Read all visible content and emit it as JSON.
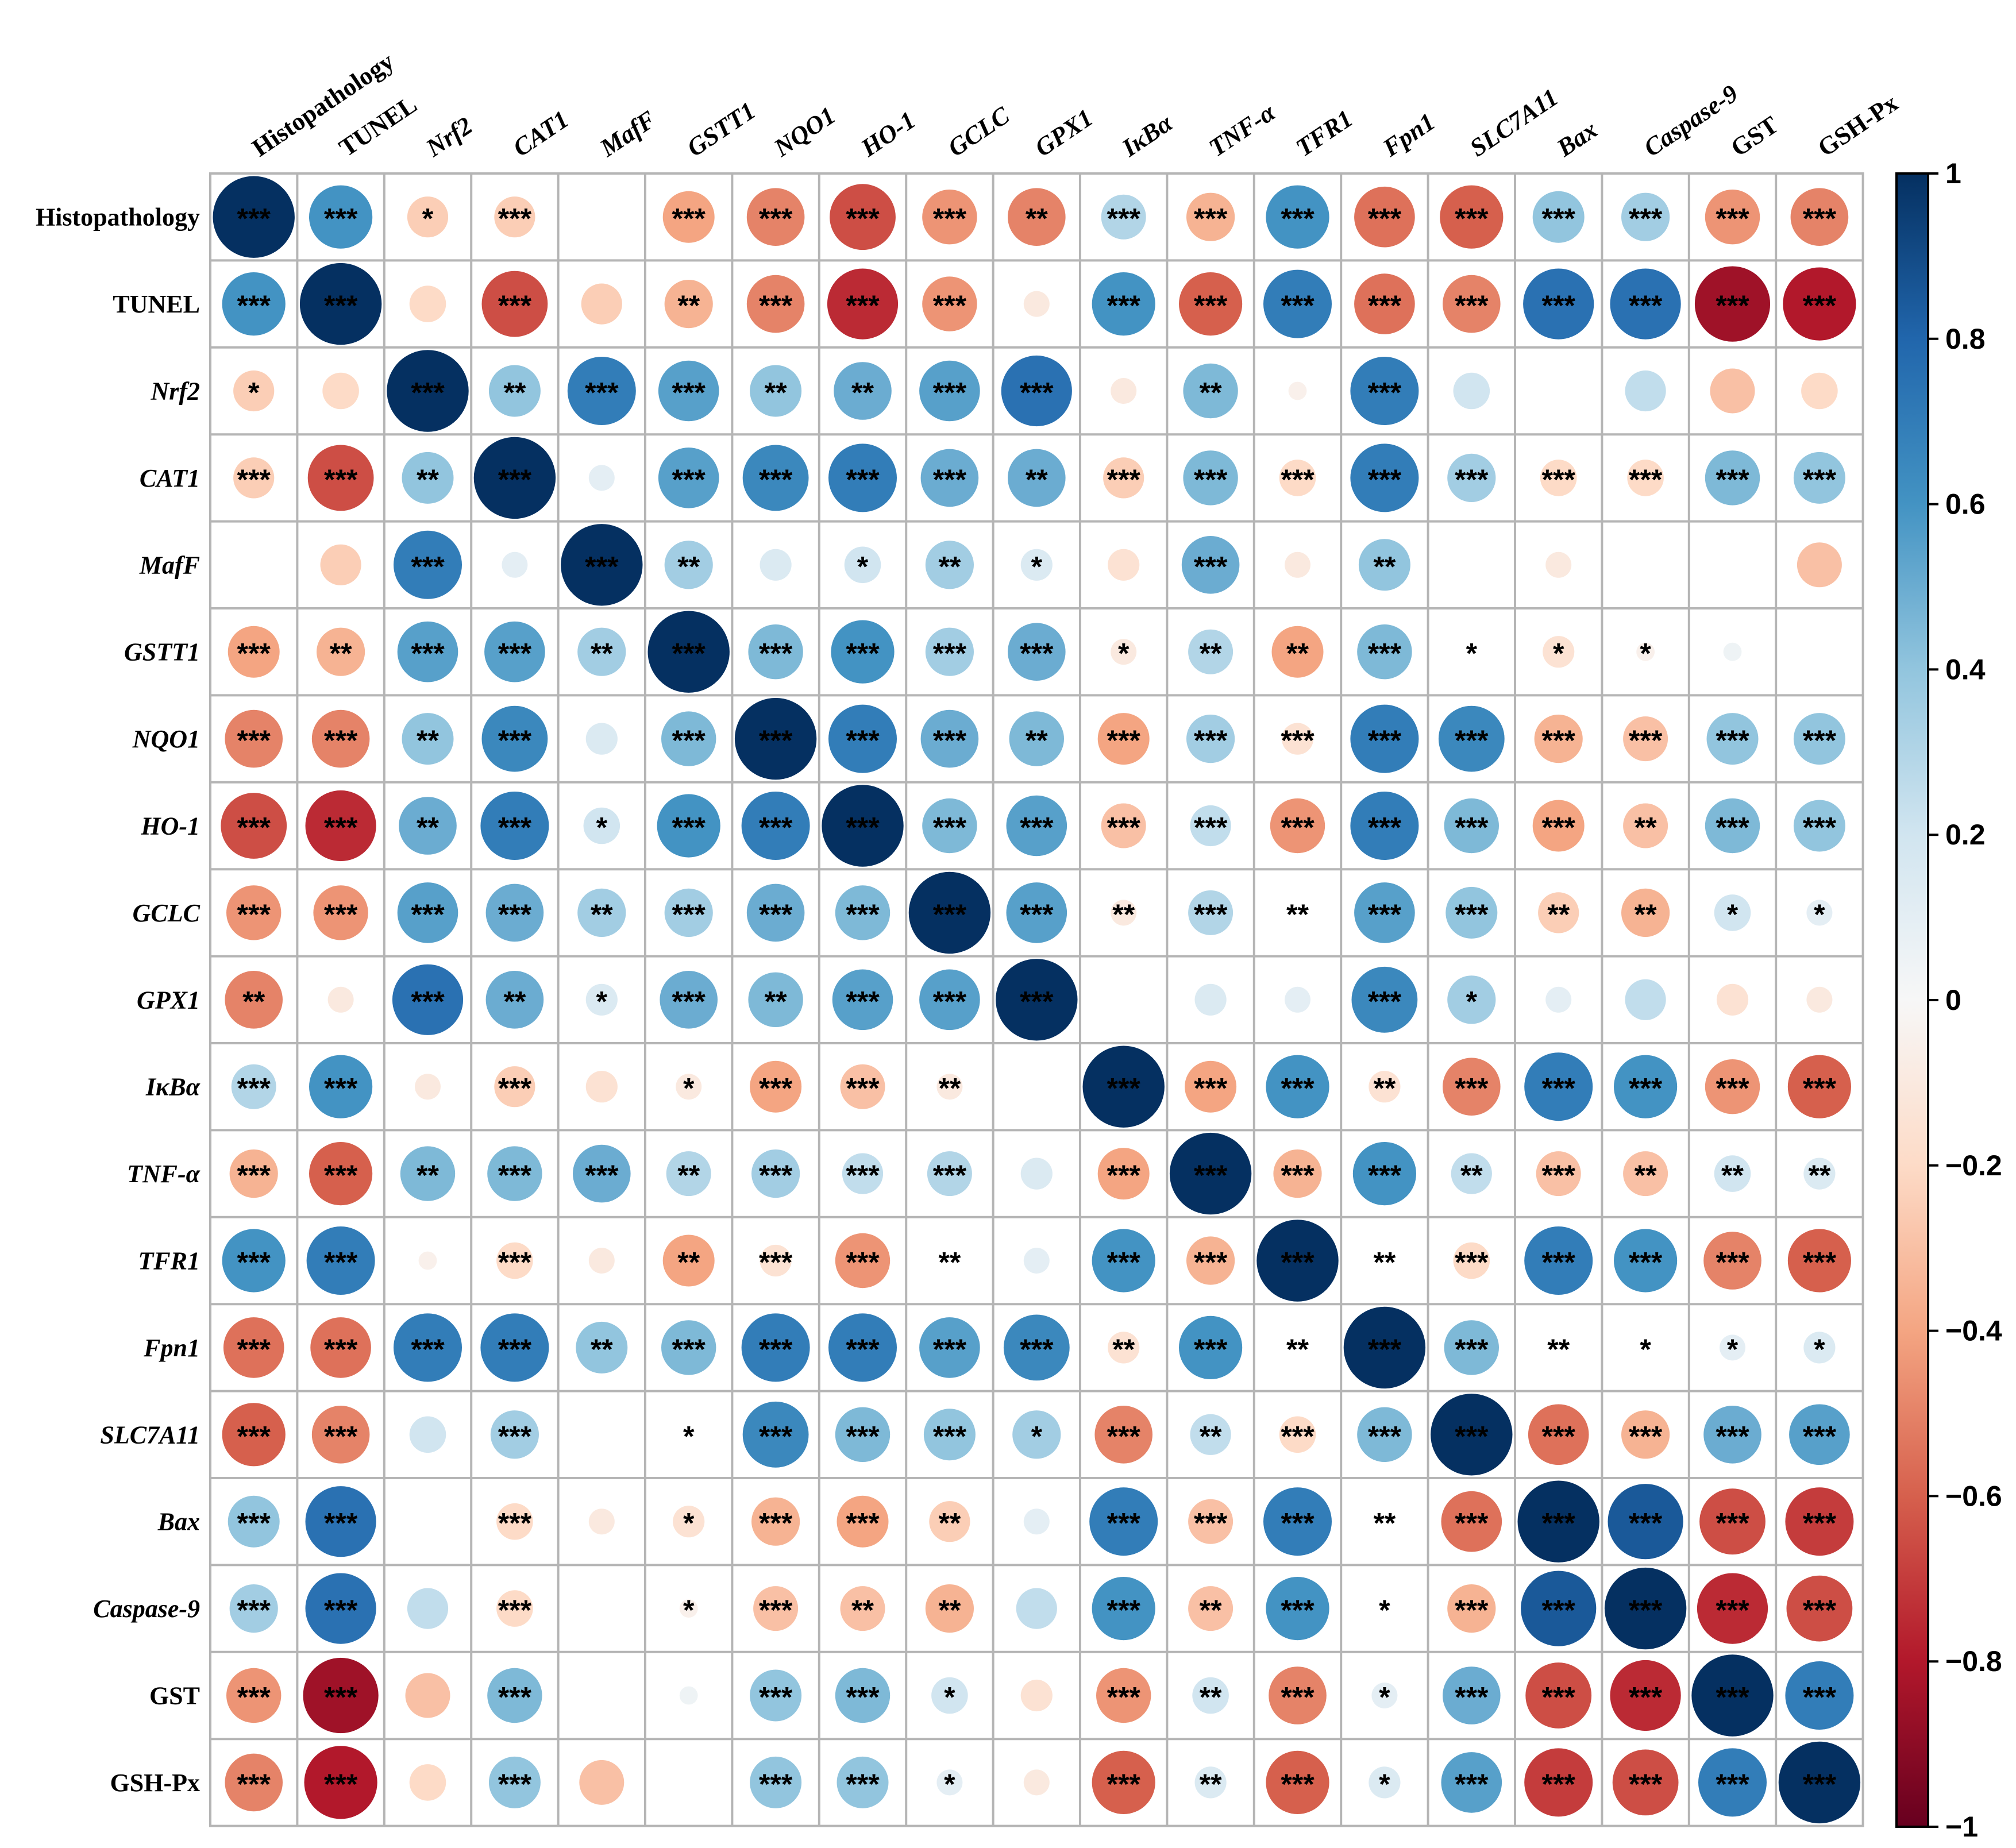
{
  "chart_data": {
    "type": "heatmap",
    "style": "circle-correlation-matrix",
    "title": "",
    "variables": [
      {
        "label": "Histopathology",
        "italic": false
      },
      {
        "label": "TUNEL",
        "italic": false
      },
      {
        "label": "Nrf2",
        "italic": true
      },
      {
        "label": "CAT1",
        "italic": true
      },
      {
        "label": "MafF",
        "italic": true
      },
      {
        "label": "GSTT1",
        "italic": true
      },
      {
        "label": "NQO1",
        "italic": true
      },
      {
        "label": "HO-1",
        "italic": true
      },
      {
        "label": "GCLC",
        "italic": true
      },
      {
        "label": "GPX1",
        "italic": true
      },
      {
        "label": "IκBα",
        "italic": true
      },
      {
        "label": "TNF-α",
        "italic": true
      },
      {
        "label": "TFR1",
        "italic": true
      },
      {
        "label": "Fpn1",
        "italic": true
      },
      {
        "label": "SLC7A11",
        "italic": true
      },
      {
        "label": "Bax",
        "italic": true
      },
      {
        "label": "Caspase-9",
        "italic": true
      },
      {
        "label": "GST",
        "italic": false
      },
      {
        "label": "GSH-Px",
        "italic": false
      }
    ],
    "correlations": [
      [
        1.0,
        0.6,
        -0.25,
        -0.25,
        0.0,
        -0.4,
        -0.5,
        -0.65,
        -0.45,
        -0.5,
        0.3,
        -0.35,
        0.6,
        -0.55,
        -0.6,
        0.4,
        0.35,
        -0.45,
        -0.5
      ],
      [
        0.6,
        1.0,
        -0.2,
        -0.65,
        -0.25,
        -0.35,
        -0.5,
        -0.75,
        -0.45,
        -0.1,
        0.6,
        -0.6,
        0.7,
        -0.55,
        -0.5,
        0.75,
        0.75,
        -0.85,
        -0.8
      ],
      [
        -0.25,
        -0.2,
        1.0,
        0.4,
        0.7,
        0.55,
        0.4,
        0.5,
        0.55,
        0.75,
        -0.1,
        0.45,
        -0.05,
        0.7,
        0.2,
        0.0,
        0.25,
        -0.3,
        -0.2
      ],
      [
        -0.25,
        -0.65,
        0.4,
        1.0,
        0.1,
        0.55,
        0.65,
        0.7,
        0.5,
        0.5,
        -0.25,
        0.45,
        -0.2,
        0.7,
        0.35,
        -0.2,
        -0.2,
        0.45,
        0.4
      ],
      [
        0.0,
        -0.25,
        0.7,
        0.1,
        1.0,
        0.35,
        0.15,
        0.2,
        0.35,
        0.15,
        -0.15,
        0.5,
        -0.1,
        0.4,
        0.0,
        -0.1,
        0.0,
        0.0,
        -0.3
      ],
      [
        -0.4,
        -0.35,
        0.55,
        0.55,
        0.35,
        1.0,
        0.45,
        0.6,
        0.35,
        0.5,
        -0.1,
        0.3,
        -0.4,
        0.45,
        0.0,
        -0.15,
        -0.05,
        0.05,
        0.0
      ],
      [
        -0.5,
        -0.5,
        0.4,
        0.65,
        0.15,
        0.45,
        1.0,
        0.7,
        0.5,
        0.45,
        -0.4,
        0.35,
        -0.15,
        0.7,
        0.65,
        -0.35,
        -0.3,
        0.4,
        0.4
      ],
      [
        -0.65,
        -0.75,
        0.5,
        0.7,
        0.2,
        0.6,
        0.7,
        1.0,
        0.45,
        0.55,
        -0.3,
        0.25,
        -0.45,
        0.7,
        0.45,
        -0.4,
        -0.3,
        0.45,
        0.4
      ],
      [
        -0.45,
        -0.45,
        0.55,
        0.5,
        0.35,
        0.35,
        0.5,
        0.45,
        1.0,
        0.55,
        -0.1,
        0.3,
        0.0,
        0.55,
        0.4,
        -0.25,
        -0.35,
        0.2,
        0.1
      ],
      [
        -0.5,
        -0.1,
        0.75,
        0.5,
        0.15,
        0.5,
        0.45,
        0.55,
        0.55,
        1.0,
        0.0,
        0.15,
        0.1,
        0.65,
        0.35,
        0.1,
        0.25,
        -0.15,
        -0.1
      ],
      [
        0.3,
        0.6,
        -0.1,
        -0.25,
        -0.15,
        -0.1,
        -0.4,
        -0.3,
        -0.1,
        0.0,
        1.0,
        -0.4,
        0.6,
        -0.15,
        -0.5,
        0.7,
        0.6,
        -0.45,
        -0.6
      ],
      [
        -0.35,
        -0.6,
        0.45,
        0.45,
        0.5,
        0.3,
        0.35,
        0.25,
        0.3,
        0.15,
        -0.4,
        1.0,
        -0.35,
        0.6,
        0.25,
        -0.3,
        -0.3,
        0.2,
        0.15
      ],
      [
        0.6,
        0.7,
        -0.05,
        -0.2,
        -0.1,
        -0.4,
        -0.15,
        -0.45,
        0.0,
        0.1,
        0.6,
        -0.35,
        1.0,
        0.0,
        -0.2,
        0.7,
        0.6,
        -0.5,
        -0.6
      ],
      [
        -0.55,
        -0.55,
        0.7,
        0.7,
        0.4,
        0.45,
        0.7,
        0.7,
        0.55,
        0.65,
        -0.15,
        0.6,
        0.0,
        1.0,
        0.45,
        0.0,
        0.0,
        0.1,
        0.15
      ],
      [
        -0.6,
        -0.5,
        0.2,
        0.35,
        0.0,
        0.0,
        0.65,
        0.45,
        0.4,
        0.35,
        -0.5,
        0.25,
        -0.2,
        0.45,
        1.0,
        -0.55,
        -0.35,
        0.5,
        0.55
      ],
      [
        0.4,
        0.75,
        0.0,
        -0.2,
        -0.1,
        -0.15,
        -0.35,
        -0.4,
        -0.25,
        0.1,
        0.7,
        -0.3,
        0.7,
        0.0,
        -0.55,
        1.0,
        0.85,
        -0.65,
        -0.7
      ],
      [
        0.35,
        0.75,
        0.25,
        -0.2,
        0.0,
        -0.05,
        -0.3,
        -0.3,
        -0.35,
        0.25,
        0.6,
        -0.3,
        0.6,
        0.0,
        -0.35,
        0.85,
        1.0,
        -0.75,
        -0.65
      ],
      [
        -0.45,
        -0.85,
        -0.3,
        0.45,
        0.0,
        0.05,
        0.4,
        0.45,
        0.2,
        -0.15,
        -0.45,
        0.2,
        -0.5,
        0.1,
        0.5,
        -0.65,
        -0.75,
        1.0,
        0.7
      ],
      [
        -0.5,
        -0.8,
        -0.2,
        0.4,
        -0.3,
        0.0,
        0.4,
        0.4,
        0.1,
        -0.1,
        -0.6,
        0.15,
        -0.6,
        0.15,
        0.55,
        -0.7,
        -0.65,
        0.7,
        1.0
      ]
    ],
    "significance": [
      [
        "***",
        "***",
        "*",
        "***",
        "",
        "***",
        "***",
        "***",
        "***",
        "**",
        "***",
        "***",
        "***",
        "***",
        "***",
        "***",
        "***",
        "***",
        "***"
      ],
      [
        "***",
        "***",
        "",
        "***",
        "",
        "**",
        "***",
        "***",
        "***",
        "",
        "***",
        "***",
        "***",
        "***",
        "***",
        "***",
        "***",
        "***",
        "***"
      ],
      [
        "*",
        "",
        "***",
        "**",
        "***",
        "***",
        "**",
        "**",
        "***",
        "***",
        "",
        "**",
        "",
        "***",
        "",
        "",
        "",
        "",
        ""
      ],
      [
        "***",
        "***",
        "**",
        "***",
        "",
        "***",
        "***",
        "***",
        "***",
        "**",
        "***",
        "***",
        "***",
        "***",
        "***",
        "***",
        "***",
        "***",
        "***"
      ],
      [
        "",
        "",
        "***",
        "",
        "***",
        "**",
        "",
        "*",
        "**",
        "*",
        "",
        "***",
        "",
        "**",
        "",
        "",
        "",
        "",
        ""
      ],
      [
        "***",
        "**",
        "***",
        "***",
        "**",
        "***",
        "***",
        "***",
        "***",
        "***",
        "*",
        "**",
        "**",
        "***",
        "*",
        "*",
        "*",
        "",
        ""
      ],
      [
        "***",
        "***",
        "**",
        "***",
        "",
        "***",
        "***",
        "***",
        "***",
        "**",
        "***",
        "***",
        "***",
        "***",
        "***",
        "***",
        "***",
        "***",
        "***"
      ],
      [
        "***",
        "***",
        "**",
        "***",
        "*",
        "***",
        "***",
        "***",
        "***",
        "***",
        "***",
        "***",
        "***",
        "***",
        "***",
        "***",
        "**",
        "***",
        "***"
      ],
      [
        "***",
        "***",
        "***",
        "***",
        "**",
        "***",
        "***",
        "***",
        "***",
        "***",
        "**",
        "***",
        "**",
        "***",
        "***",
        "**",
        "**",
        "*",
        "*"
      ],
      [
        "**",
        "",
        "***",
        "**",
        "*",
        "***",
        "**",
        "***",
        "***",
        "***",
        "",
        "",
        "",
        "***",
        "*",
        "",
        "",
        "",
        ""
      ],
      [
        "***",
        "***",
        "",
        "***",
        "",
        "*",
        "***",
        "***",
        "**",
        "",
        "***",
        "***",
        "***",
        "**",
        "***",
        "***",
        "***",
        "***",
        "***"
      ],
      [
        "***",
        "***",
        "**",
        "***",
        "***",
        "**",
        "***",
        "***",
        "***",
        "",
        "***",
        "***",
        "***",
        "***",
        "**",
        "***",
        "**",
        "**",
        "**"
      ],
      [
        "***",
        "***",
        "",
        "***",
        "",
        "**",
        "***",
        "***",
        "**",
        "",
        "***",
        "***",
        "***",
        "**",
        "***",
        "***",
        "***",
        "***",
        "***"
      ],
      [
        "***",
        "***",
        "***",
        "***",
        "**",
        "***",
        "***",
        "***",
        "***",
        "***",
        "**",
        "***",
        "**",
        "***",
        "***",
        "**",
        "*",
        "*",
        "*"
      ],
      [
        "***",
        "***",
        "",
        "***",
        "",
        "*",
        "***",
        "***",
        "***",
        "*",
        "***",
        "**",
        "***",
        "***",
        "***",
        "***",
        "***",
        "***",
        "***"
      ],
      [
        "***",
        "***",
        "",
        "***",
        "",
        "*",
        "***",
        "***",
        "**",
        "",
        "***",
        "***",
        "***",
        "**",
        "***",
        "***",
        "***",
        "***",
        "***"
      ],
      [
        "***",
        "***",
        "",
        "***",
        "",
        "*",
        "***",
        "**",
        "**",
        "",
        "***",
        "**",
        "***",
        "*",
        "***",
        "***",
        "***",
        "***",
        "***"
      ],
      [
        "***",
        "***",
        "",
        "***",
        "",
        "",
        "***",
        "***",
        "*",
        "",
        "***",
        "**",
        "***",
        "*",
        "***",
        "***",
        "***",
        "***",
        "***"
      ],
      [
        "***",
        "***",
        "",
        "***",
        "",
        "",
        "***",
        "***",
        "*",
        "",
        "***",
        "**",
        "***",
        "*",
        "***",
        "***",
        "***",
        "***",
        "***"
      ]
    ],
    "colorbar": {
      "range": [
        -1,
        1
      ],
      "ticks": [
        1,
        0.8,
        0.6,
        0.4,
        0.2,
        0,
        -0.2,
        -0.4,
        -0.6,
        -0.8,
        -1
      ],
      "tick_labels": [
        "1",
        "0.8",
        "0.6",
        "0.4",
        "0.2",
        "0",
        "−0.2",
        "−0.4",
        "−0.6",
        "−0.8",
        "−1"
      ],
      "palette": {
        "negative_end": "#67001f",
        "negative_mid": "#d6604d",
        "negative_light": "#f4a582",
        "neutral": "#f7f7f7",
        "positive_light": "#92c5de",
        "positive_mid": "#4393c3",
        "positive_end": "#053061"
      }
    },
    "grid": true,
    "legend": "right"
  }
}
